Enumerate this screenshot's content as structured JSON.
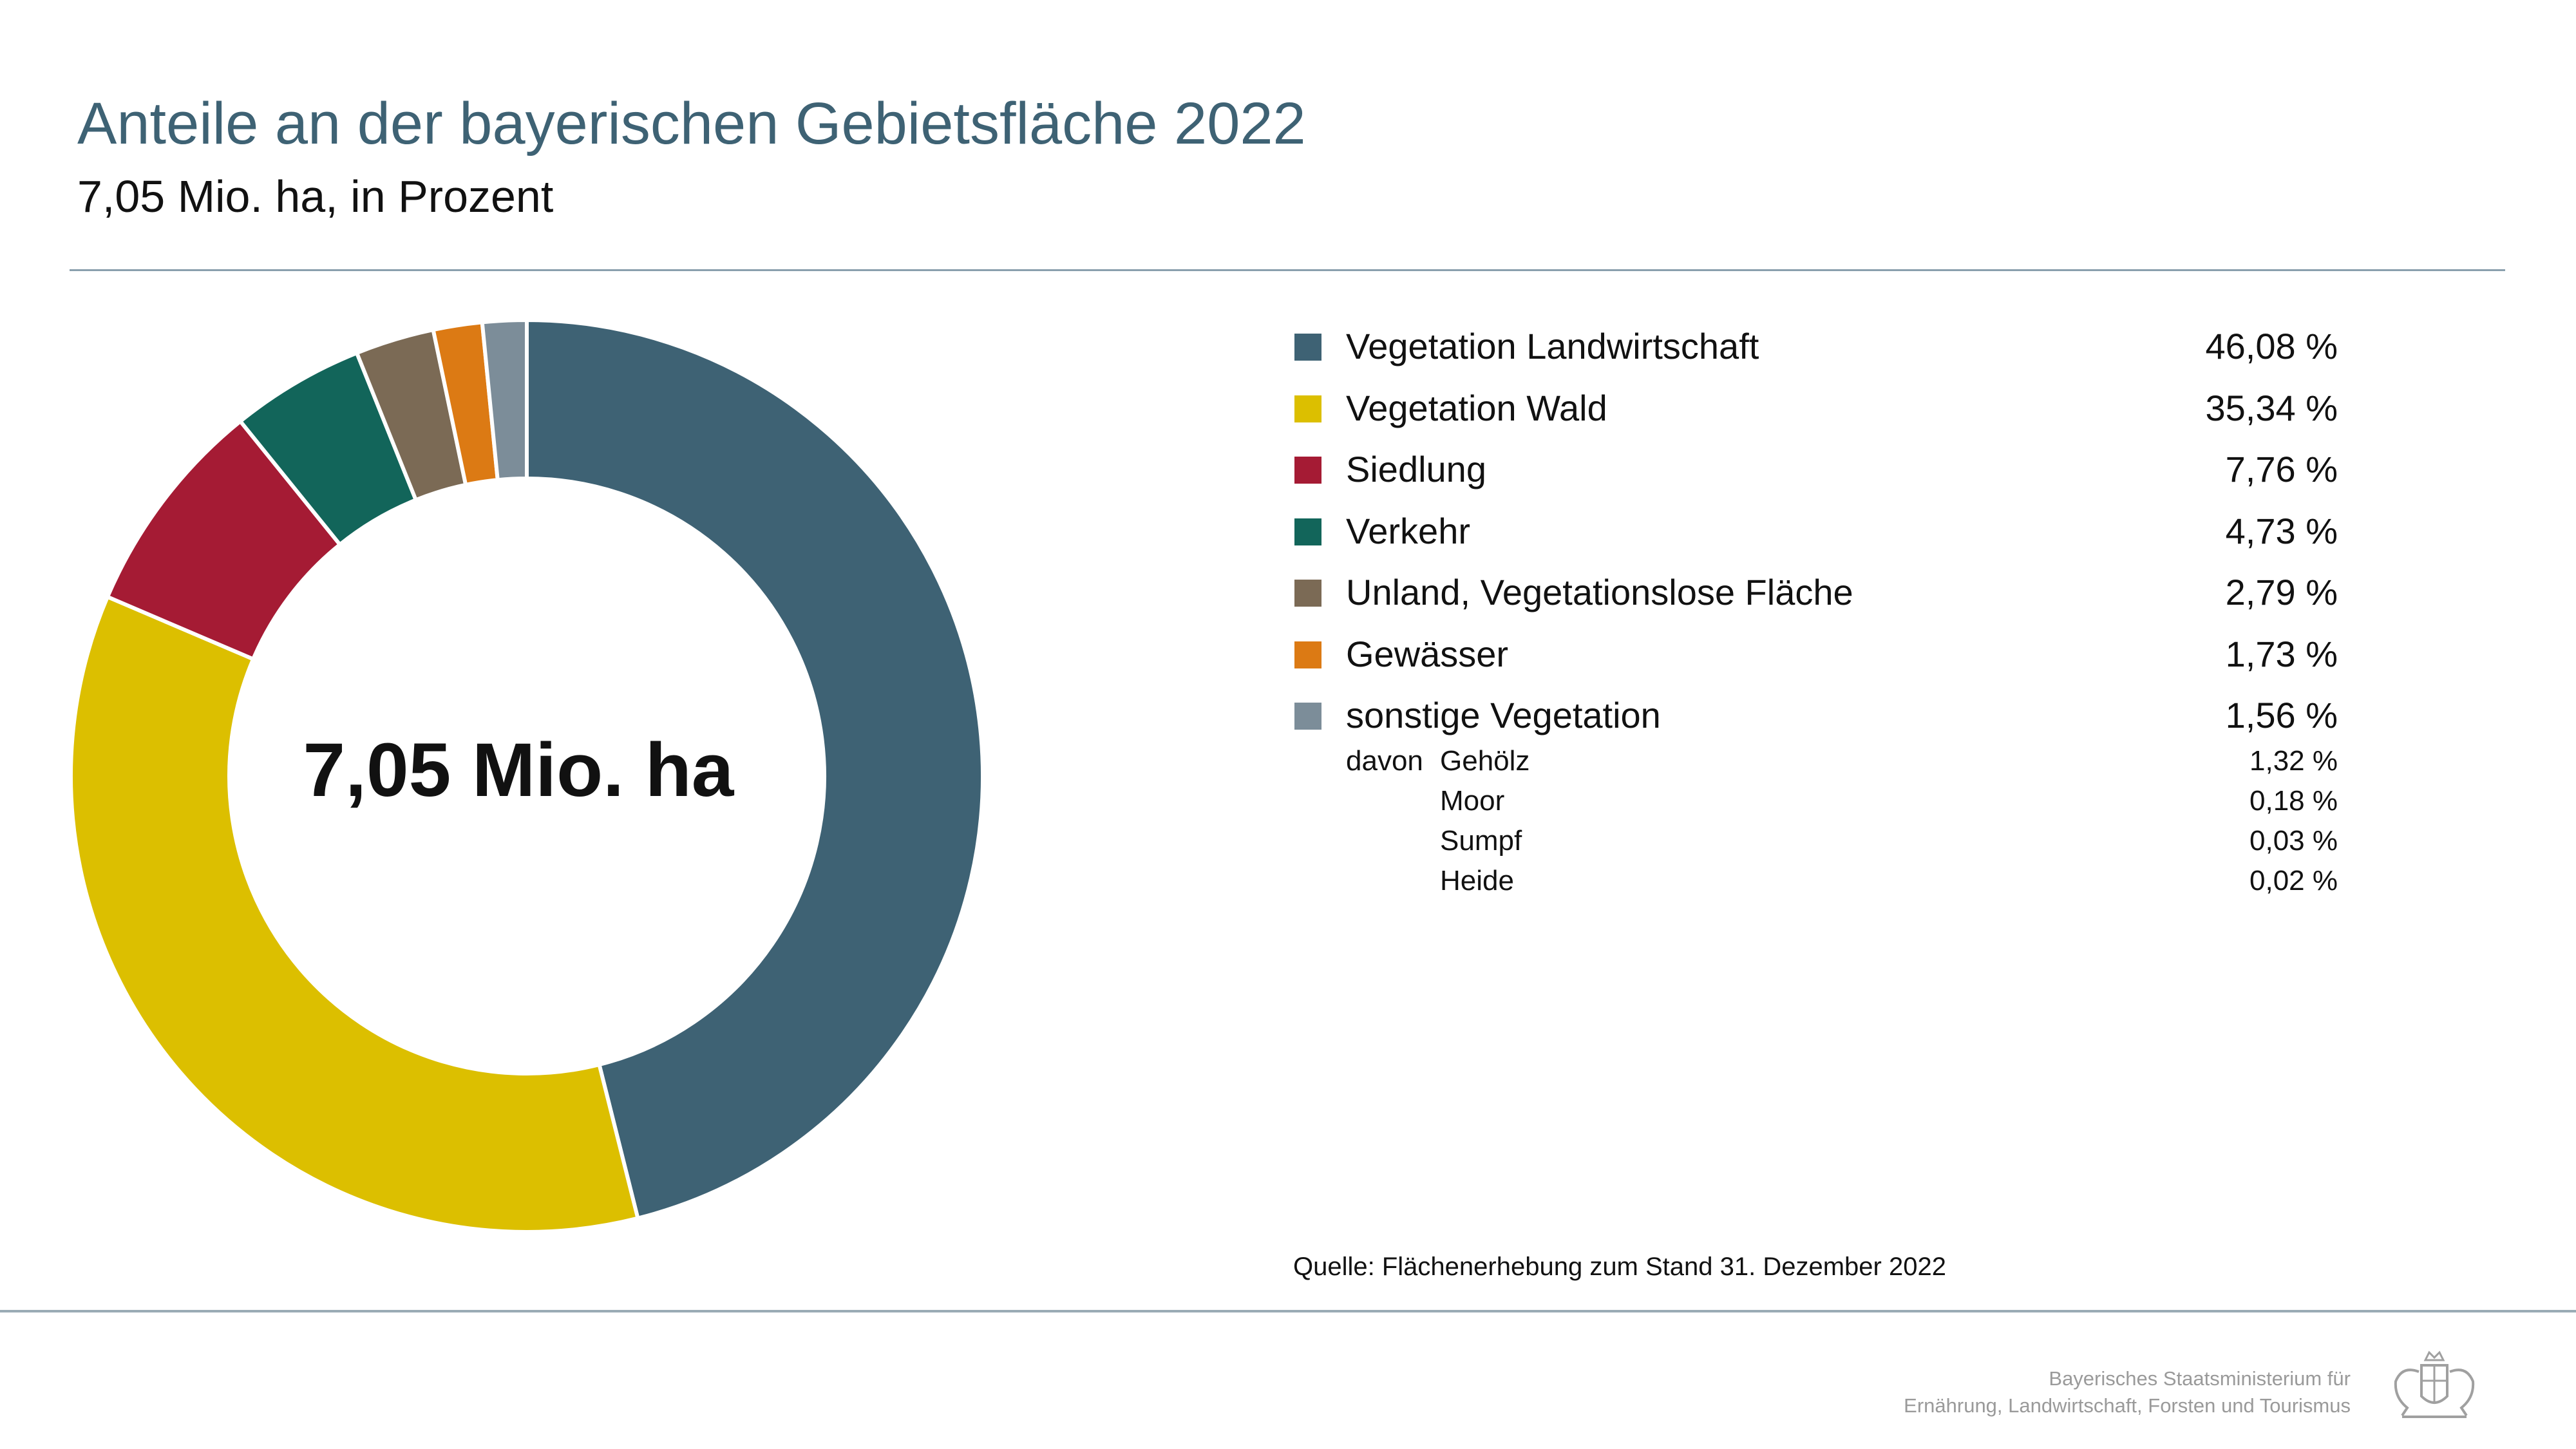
{
  "header": {
    "title": "Anteile an der bayerischen Gebietsfläche 2022",
    "subtitle": "7,05 Mio. ha, in Prozent"
  },
  "center_label": "7,05 Mio. ha",
  "legend": [
    {
      "label": "Vegetation Landwirtschaft",
      "value": "46,08 %",
      "color": "#3e6274"
    },
    {
      "label": "Vegetation Wald",
      "value": "35,34 %",
      "color": "#dcbf00"
    },
    {
      "label": "Siedlung",
      "value": "7,76 %",
      "color": "#a51b34"
    },
    {
      "label": "Verkehr",
      "value": "4,73 %",
      "color": "#12655a"
    },
    {
      "label": "Unland, Vegetationslose Fläche",
      "value": "2,79 %",
      "color": "#7b6a55"
    },
    {
      "label": "Gewässer",
      "value": "1,73 %",
      "color": "#dc7a14"
    },
    {
      "label": "sonstige Vegetation",
      "value": "1,56 %",
      "color": "#7c8d99"
    }
  ],
  "sub_breakdown": {
    "prefix": "davon",
    "items": [
      {
        "label": "Gehölz",
        "value": "1,32 %"
      },
      {
        "label": "Moor",
        "value": "0,18 %"
      },
      {
        "label": "Sumpf",
        "value": "0,03 %"
      },
      {
        "label": "Heide",
        "value": "0,02 %"
      }
    ]
  },
  "source": "Quelle: Flächenerhebung zum Stand 31. Dezember 2022",
  "footer": {
    "ministry_line1": "Bayerisches Staatsministerium für",
    "ministry_line2": "Ernährung, Landwirtschaft, Forsten und Tourismus",
    "logo_icon": "bavarian-coat-of-arms-icon"
  },
  "chart_data": {
    "type": "pie",
    "donut": true,
    "title": "Anteile an der bayerischen Gebietsfläche 2022",
    "subtitle": "7,05 Mio. ha, in Prozent",
    "center_label": "7,05 Mio. ha",
    "legend_position": "right",
    "categories": [
      "Vegetation Landwirtschaft",
      "Vegetation Wald",
      "Siedlung",
      "Verkehr",
      "Unland, Vegetationslose Fläche",
      "Gewässer",
      "sonstige Vegetation"
    ],
    "values": [
      46.08,
      35.34,
      7.76,
      4.73,
      2.79,
      1.73,
      1.56
    ],
    "colors": [
      "#3e6274",
      "#dcbf00",
      "#a51b34",
      "#12655a",
      "#7b6a55",
      "#dc7a14",
      "#7c8d99"
    ],
    "sub_breakdown": {
      "parent": "sonstige Vegetation",
      "categories": [
        "Gehölz",
        "Moor",
        "Sumpf",
        "Heide"
      ],
      "values": [
        1.32,
        0.18,
        0.03,
        0.02
      ]
    }
  }
}
